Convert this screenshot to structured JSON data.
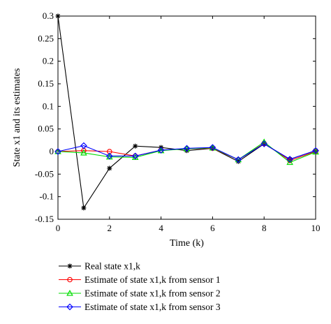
{
  "chart_data": {
    "type": "line",
    "xlabel": "Time (k)",
    "ylabel": "State x1 and its estimates",
    "xlim": [
      0,
      10
    ],
    "ylim": [
      -0.15,
      0.3
    ],
    "xticks": [
      "0",
      "2",
      "4",
      "6",
      "8",
      "10"
    ],
    "yticks": [
      "-0.15",
      "-0.1",
      "-0.05",
      "0",
      "0.05",
      "0.1",
      "0.15",
      "0.2",
      "0.25",
      "0.3"
    ],
    "grid": false,
    "legend_position": "below",
    "x": [
      0,
      1,
      2,
      3,
      4,
      5,
      6,
      7,
      8,
      9,
      10
    ],
    "series": [
      {
        "name": "Real state x1,k",
        "color": "#000000",
        "marker": "star",
        "values": [
          0.3,
          -0.125,
          -0.037,
          0.012,
          0.009,
          0.002,
          0.007,
          -0.022,
          0.017,
          -0.017,
          0.002
        ]
      },
      {
        "name": "Estimate of state x1,k from sensor 1",
        "color": "#ff0000",
        "marker": "circle",
        "values": [
          0.0,
          0.002,
          0.0,
          -0.01,
          0.003,
          0.006,
          0.007,
          -0.018,
          0.018,
          -0.02,
          0.0
        ]
      },
      {
        "name": "Estimate of state x1,k from sensor 2",
        "color": "#00dd00",
        "marker": "triangle",
        "values": [
          0.0,
          -0.003,
          -0.012,
          -0.013,
          0.002,
          0.006,
          0.008,
          -0.018,
          0.021,
          -0.024,
          -0.001
        ]
      },
      {
        "name": "Estimate of state x1,k from sensor 3",
        "color": "#0000ff",
        "marker": "diamond",
        "values": [
          0.0,
          0.013,
          -0.01,
          -0.01,
          0.003,
          0.007,
          0.009,
          -0.018,
          0.017,
          -0.017,
          0.002
        ]
      }
    ]
  }
}
